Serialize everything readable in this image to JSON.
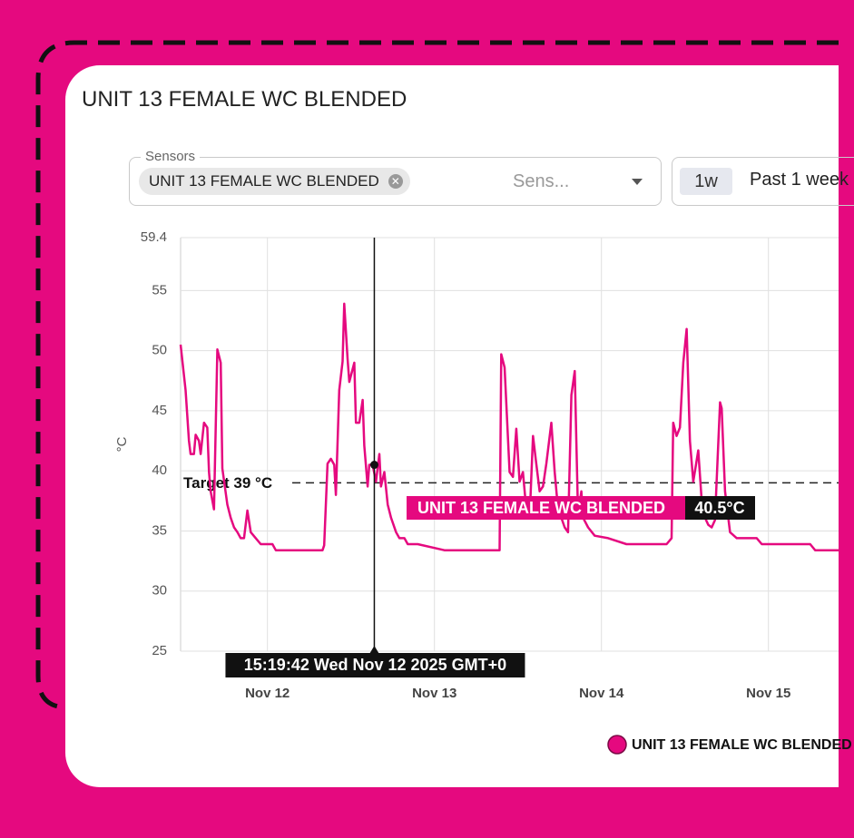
{
  "header": {
    "title": "UNIT 13 FEMALE WC BLENDED"
  },
  "sensors": {
    "label": "Sensors",
    "selected": [
      "UNIT 13 FEMALE WC BLENDED"
    ],
    "placeholder": "Sens..."
  },
  "range": {
    "short": "1w",
    "label": "Past 1 week"
  },
  "chart_data": {
    "type": "line",
    "y_label": "°C",
    "x": [
      11.48,
      11.51,
      11.53,
      11.54,
      11.56,
      11.57,
      11.59,
      11.6,
      11.62,
      11.64,
      11.65,
      11.66,
      11.68,
      11.7,
      11.72,
      11.73,
      11.76,
      11.78,
      11.8,
      11.82,
      11.84,
      11.86,
      11.88,
      11.9,
      11.93,
      11.96,
      12.03,
      12.05,
      12.33,
      12.34,
      12.36,
      12.38,
      12.4,
      12.41,
      12.43,
      12.45,
      12.46,
      12.48,
      12.49,
      12.52,
      12.53,
      12.55,
      12.57,
      12.58,
      12.6,
      12.61,
      12.63,
      12.65,
      12.67,
      12.68,
      12.7,
      12.72,
      12.74,
      12.77,
      12.79,
      12.82,
      12.84,
      12.9,
      13.06,
      13.39,
      13.4,
      13.42,
      13.45,
      13.47,
      13.49,
      13.51,
      13.53,
      13.55,
      13.57,
      13.59,
      13.61,
      13.63,
      13.65,
      13.67,
      13.7,
      13.72,
      13.74,
      13.76,
      13.78,
      13.8,
      13.82,
      13.84,
      13.86,
      13.88,
      13.89,
      13.92,
      13.96,
      14.04,
      14.15,
      14.39,
      14.42,
      14.43,
      14.45,
      14.47,
      14.49,
      14.51,
      14.53,
      14.55,
      14.58,
      14.6,
      14.62,
      14.64,
      14.66,
      14.68,
      14.71,
      14.72,
      14.74,
      14.77,
      14.81,
      14.93,
      14.96,
      15.25,
      15.28,
      15.42
    ],
    "series": [
      {
        "name": "UNIT 13 FEMALE WC BLENDED",
        "color": "#e5097f",
        "values": [
          50.5,
          46.7,
          42.5,
          41.4,
          41.4,
          43.0,
          42.5,
          41.4,
          44.0,
          43.6,
          39.9,
          38.3,
          36.8,
          50.1,
          49.0,
          40.2,
          37.2,
          36.1,
          35.3,
          34.9,
          34.4,
          34.4,
          36.7,
          34.9,
          34.4,
          33.9,
          33.9,
          33.4,
          33.4,
          33.8,
          40.6,
          41.0,
          40.5,
          38.0,
          46.7,
          49.1,
          53.9,
          49.3,
          47.4,
          49.0,
          44.0,
          44.0,
          45.9,
          42.1,
          38.7,
          40.5,
          40.5,
          39.1,
          41.4,
          38.7,
          39.9,
          37.2,
          36.1,
          34.9,
          34.4,
          34.4,
          33.9,
          33.9,
          33.4,
          33.4,
          49.7,
          48.6,
          39.9,
          39.5,
          43.5,
          39.1,
          39.9,
          36.8,
          36.1,
          42.9,
          40.6,
          38.3,
          38.7,
          40.6,
          44.0,
          39.9,
          36.8,
          36.1,
          35.3,
          34.9,
          46.3,
          48.3,
          36.4,
          38.3,
          36.1,
          35.3,
          34.6,
          34.4,
          33.9,
          33.9,
          34.4,
          44.0,
          42.9,
          43.6,
          49.0,
          51.8,
          42.5,
          39.1,
          41.7,
          37.6,
          36.1,
          35.5,
          35.3,
          35.9,
          45.7,
          45.2,
          38.3,
          34.9,
          34.4,
          34.4,
          33.9,
          33.9,
          33.4,
          33.4
        ]
      }
    ],
    "xlim": [
      11.48,
      15.42
    ],
    "xticks": [
      {
        "value": 12,
        "label": "Nov 12"
      },
      {
        "value": 13,
        "label": "Nov 13"
      },
      {
        "value": 14,
        "label": "Nov 14"
      },
      {
        "value": 15,
        "label": "Nov 15"
      }
    ],
    "ylim": [
      25,
      59.4
    ],
    "yticks": [
      25,
      30,
      35,
      40,
      45,
      50,
      55,
      59.4
    ],
    "grid": true,
    "target": {
      "value": 39,
      "label": "Target 39 °C"
    },
    "hover": {
      "x": 12.64,
      "time_label": "15:19:42 Wed Nov 12 2025 GMT+0",
      "value": 40.5,
      "value_label": "40.5°C"
    }
  }
}
